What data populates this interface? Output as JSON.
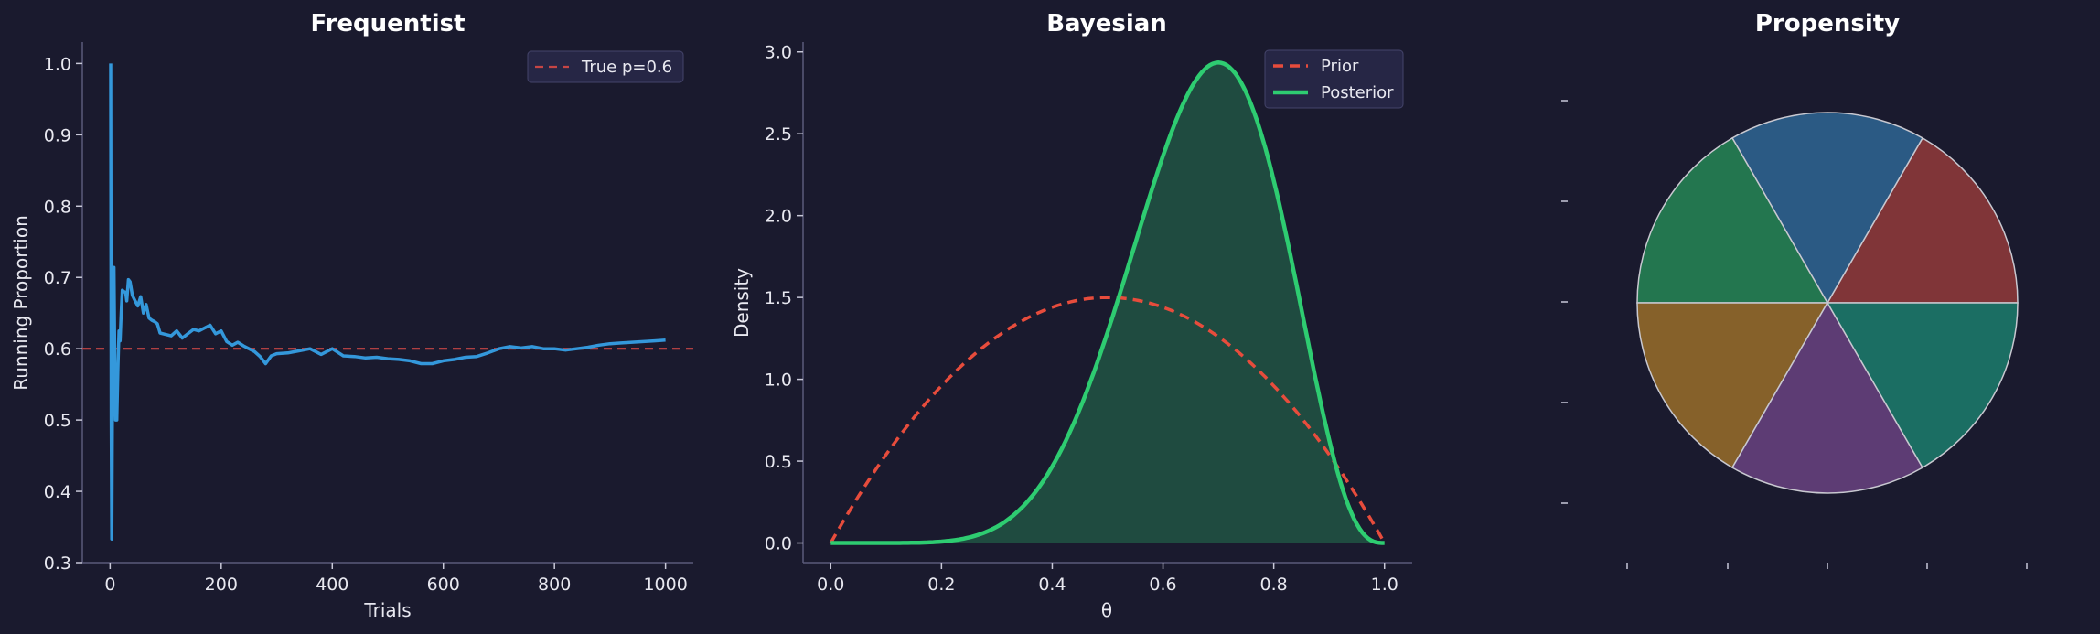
{
  "chart_data": [
    {
      "type": "line",
      "title": "Frequentist",
      "xlabel": "Trials",
      "ylabel": "Running Proportion",
      "xlim": [
        -50,
        1050
      ],
      "ylim": [
        0.3,
        1.03
      ],
      "xticks": [
        "0",
        "200",
        "400",
        "600",
        "800",
        "1000"
      ],
      "yticks": [
        "0.3",
        "0.4",
        "0.5",
        "0.6",
        "0.7",
        "0.8",
        "0.9",
        "1.0"
      ],
      "legend_position": "top-right",
      "reference_line": {
        "name": "True p=0.6",
        "value": 0.6,
        "color": "#e74c3c"
      },
      "series": [
        {
          "color": "#3498db",
          "x": [
            1,
            2,
            3,
            4,
            5,
            6,
            7,
            8,
            9,
            10,
            12,
            14,
            16,
            18,
            20,
            22,
            25,
            28,
            30,
            33,
            36,
            40,
            45,
            50,
            55,
            60,
            65,
            70,
            75,
            80,
            85,
            90,
            95,
            100,
            110,
            120,
            130,
            140,
            150,
            160,
            170,
            180,
            190,
            200,
            210,
            220,
            230,
            240,
            250,
            260,
            270,
            280,
            290,
            300,
            320,
            340,
            360,
            380,
            400,
            420,
            440,
            460,
            480,
            500,
            520,
            540,
            560,
            580,
            600,
            620,
            640,
            660,
            680,
            700,
            720,
            740,
            760,
            780,
            800,
            820,
            840,
            860,
            880,
            900,
            920,
            940,
            960,
            980,
            1000
          ],
          "y": [
            1.0,
            0.5,
            0.333,
            0.5,
            0.6,
            0.667,
            0.714,
            0.625,
            0.556,
            0.5,
            0.5,
            0.571,
            0.625,
            0.611,
            0.65,
            0.682,
            0.68,
            0.679,
            0.667,
            0.697,
            0.694,
            0.675,
            0.667,
            0.66,
            0.673,
            0.65,
            0.662,
            0.643,
            0.64,
            0.638,
            0.635,
            0.622,
            0.621,
            0.62,
            0.618,
            0.625,
            0.615,
            0.621,
            0.627,
            0.625,
            0.629,
            0.633,
            0.621,
            0.625,
            0.61,
            0.605,
            0.609,
            0.604,
            0.6,
            0.596,
            0.589,
            0.579,
            0.59,
            0.593,
            0.594,
            0.597,
            0.6,
            0.592,
            0.6,
            0.59,
            0.589,
            0.587,
            0.588,
            0.586,
            0.585,
            0.583,
            0.579,
            0.579,
            0.583,
            0.585,
            0.588,
            0.589,
            0.594,
            0.6,
            0.603,
            0.601,
            0.603,
            0.6,
            0.6,
            0.598,
            0.6,
            0.602,
            0.605,
            0.607,
            0.608,
            0.609,
            0.61,
            0.611,
            0.612
          ]
        }
      ]
    },
    {
      "type": "area",
      "title": "Bayesian",
      "xlabel": "θ",
      "ylabel": "Density",
      "xlim": [
        -0.05,
        1.05
      ],
      "ylim": [
        -0.12,
        3.06
      ],
      "xticks": [
        "0.0",
        "0.2",
        "0.4",
        "0.6",
        "0.8",
        "1.0"
      ],
      "yticks": [
        "0.0",
        "0.5",
        "1.0",
        "1.5",
        "2.0",
        "2.5",
        "3.0"
      ],
      "legend_position": "top-right",
      "series": [
        {
          "name": "Prior",
          "color": "#e74c3c",
          "style": "dashed",
          "distribution": "Beta(2,2)",
          "fill": false
        },
        {
          "name": "Posterior",
          "color": "#2ecc71",
          "style": "solid",
          "distribution": "Beta(8,4)",
          "fill": true
        }
      ]
    },
    {
      "type": "pie",
      "title": "Propensity",
      "values": [
        1,
        1,
        1,
        1,
        1,
        1
      ],
      "colors": [
        "#803538",
        "#2b5a84",
        "#23764f",
        "#86612a",
        "#5d3c74",
        "#1b6e63"
      ]
    }
  ]
}
